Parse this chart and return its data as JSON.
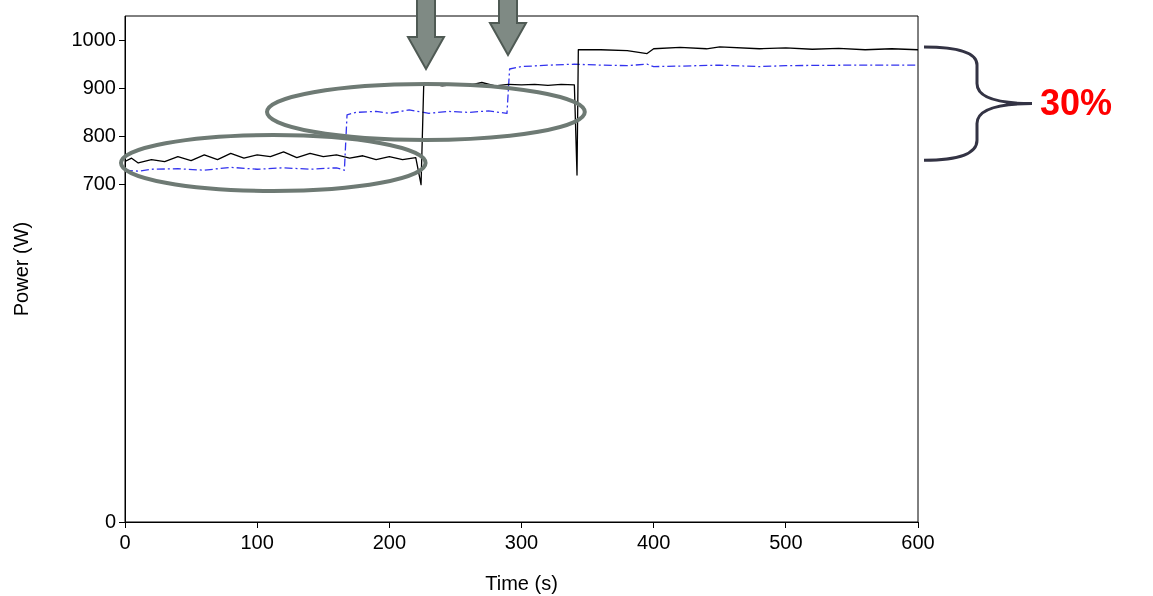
{
  "chart_data": {
    "type": "line",
    "xlabel": "Time (s)",
    "ylabel": "Power (W)",
    "xlim": [
      0,
      600
    ],
    "xticks": [
      0,
      100,
      200,
      300,
      400,
      500,
      600
    ],
    "ylim": [
      0,
      1050
    ],
    "yticks": [
      0,
      700,
      800,
      900,
      1000
    ],
    "grid": false,
    "legend": false,
    "marker": "none",
    "annotations": [
      "30%"
    ],
    "series": [
      {
        "color": "#000000",
        "line_style": "solid",
        "x": [
          0,
          5,
          10,
          20,
          30,
          40,
          50,
          60,
          70,
          80,
          90,
          100,
          110,
          120,
          130,
          140,
          150,
          160,
          170,
          180,
          190,
          200,
          210,
          220,
          224,
          226,
          230,
          240,
          250,
          260,
          270,
          280,
          290,
          300,
          310,
          320,
          330,
          340,
          342,
          343,
          360,
          380,
          395,
          400,
          420,
          440,
          450,
          480,
          500,
          520,
          540,
          560,
          580,
          600
        ],
        "values": [
          748,
          755,
          745,
          752,
          748,
          758,
          750,
          762,
          752,
          765,
          755,
          762,
          758,
          768,
          756,
          765,
          758,
          762,
          755,
          760,
          752,
          758,
          752,
          756,
          700,
          905,
          910,
          905,
          908,
          906,
          912,
          905,
          908,
          907,
          908,
          906,
          908,
          907,
          720,
          980,
          980,
          978,
          972,
          982,
          985,
          982,
          986,
          982,
          984,
          981,
          983,
          980,
          982,
          980
        ]
      },
      {
        "color": "#3333ee",
        "line_style": "dashed",
        "x": [
          0,
          10,
          20,
          40,
          60,
          80,
          100,
          120,
          140,
          160,
          166,
          168,
          175,
          190,
          200,
          215,
          230,
          245,
          260,
          275,
          289,
          291,
          300,
          320,
          340,
          360,
          380,
          395,
          400,
          420,
          450,
          480,
          500,
          550,
          600
        ],
        "values": [
          730,
          728,
          732,
          733,
          730,
          736,
          732,
          735,
          732,
          735,
          730,
          845,
          850,
          852,
          848,
          855,
          848,
          852,
          850,
          853,
          848,
          940,
          945,
          948,
          950,
          948,
          947,
          950,
          945,
          946,
          948,
          945,
          947,
          948,
          948
        ]
      }
    ]
  }
}
